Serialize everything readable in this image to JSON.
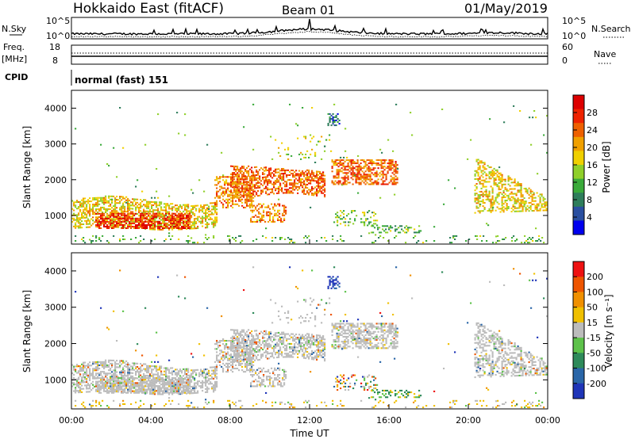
{
  "header": {
    "title": "Hokkaido East (fitACF)",
    "beam": "Beam 01",
    "date": "01/May/2019"
  },
  "strip_labels": {
    "nsky": "N.Sky",
    "nsky_ticks": [
      "10^5",
      "10^0"
    ],
    "nsearch": "N.Search",
    "nsearch_ticks": [
      "10^5",
      "10^0"
    ],
    "freq": "Freq.",
    "freq_unit": "[MHz]",
    "freq_ticks": [
      "18",
      "8"
    ],
    "nave": "Nave",
    "nave_ticks": [
      "60",
      "0"
    ],
    "cpid": "CPID",
    "cpid_text": "normal (fast) 151"
  },
  "colors": {
    "power": [
      "#0000ee",
      "#2a4fa0",
      "#2e7d5b",
      "#3aaa3a",
      "#8fcf2a",
      "#f0d000",
      "#f0a000",
      "#ee6000",
      "#ee2200",
      "#dd0000"
    ],
    "velocity": [
      "#1f35b8",
      "#2a66a8",
      "#2e8a5a",
      "#5dc24a",
      "#bcbcbc",
      "#f0c000",
      "#f09000",
      "#ee5500",
      "#ee1111"
    ]
  },
  "chart_data": [
    {
      "type": "line",
      "panel": "N.Sky / N.Search",
      "note_scale": "log",
      "ylim": [
        "10^0",
        "10^5"
      ]
    },
    {
      "type": "line",
      "panel": "Freq / Nave",
      "freq_ylim": [
        8,
        18
      ],
      "nave_ylim": [
        0,
        60
      ]
    },
    {
      "type": "heatmap",
      "panel": "power",
      "ylabel": "Slant Range [km]",
      "yticks": [
        1000,
        2000,
        3000,
        4000
      ],
      "ylim": [
        200,
        4500
      ],
      "xlim": [
        0,
        24
      ],
      "colorbar_label": "Power [dB]",
      "colorbar_ticks": [
        "4",
        "8",
        "12",
        "16",
        "20",
        "24",
        "28"
      ],
      "colorbar_range": [
        0,
        32
      ]
    },
    {
      "type": "heatmap",
      "panel": "velocity",
      "ylabel": "Slant Range [km]",
      "yticks": [
        1000,
        2000,
        3000,
        4000
      ],
      "ylim": [
        200,
        4500
      ],
      "xlim": [
        0,
        24
      ],
      "xticks": [
        "00:00",
        "04:00",
        "08:00",
        "12:00",
        "16:00",
        "20:00",
        "00:00"
      ],
      "xlabel": "Time UT",
      "colorbar_label": "Velocity [m s⁻¹]",
      "colorbar_ticks": [
        "200",
        "100",
        "50",
        "15",
        "-15",
        "-50",
        "-100",
        "-200"
      ]
    }
  ]
}
